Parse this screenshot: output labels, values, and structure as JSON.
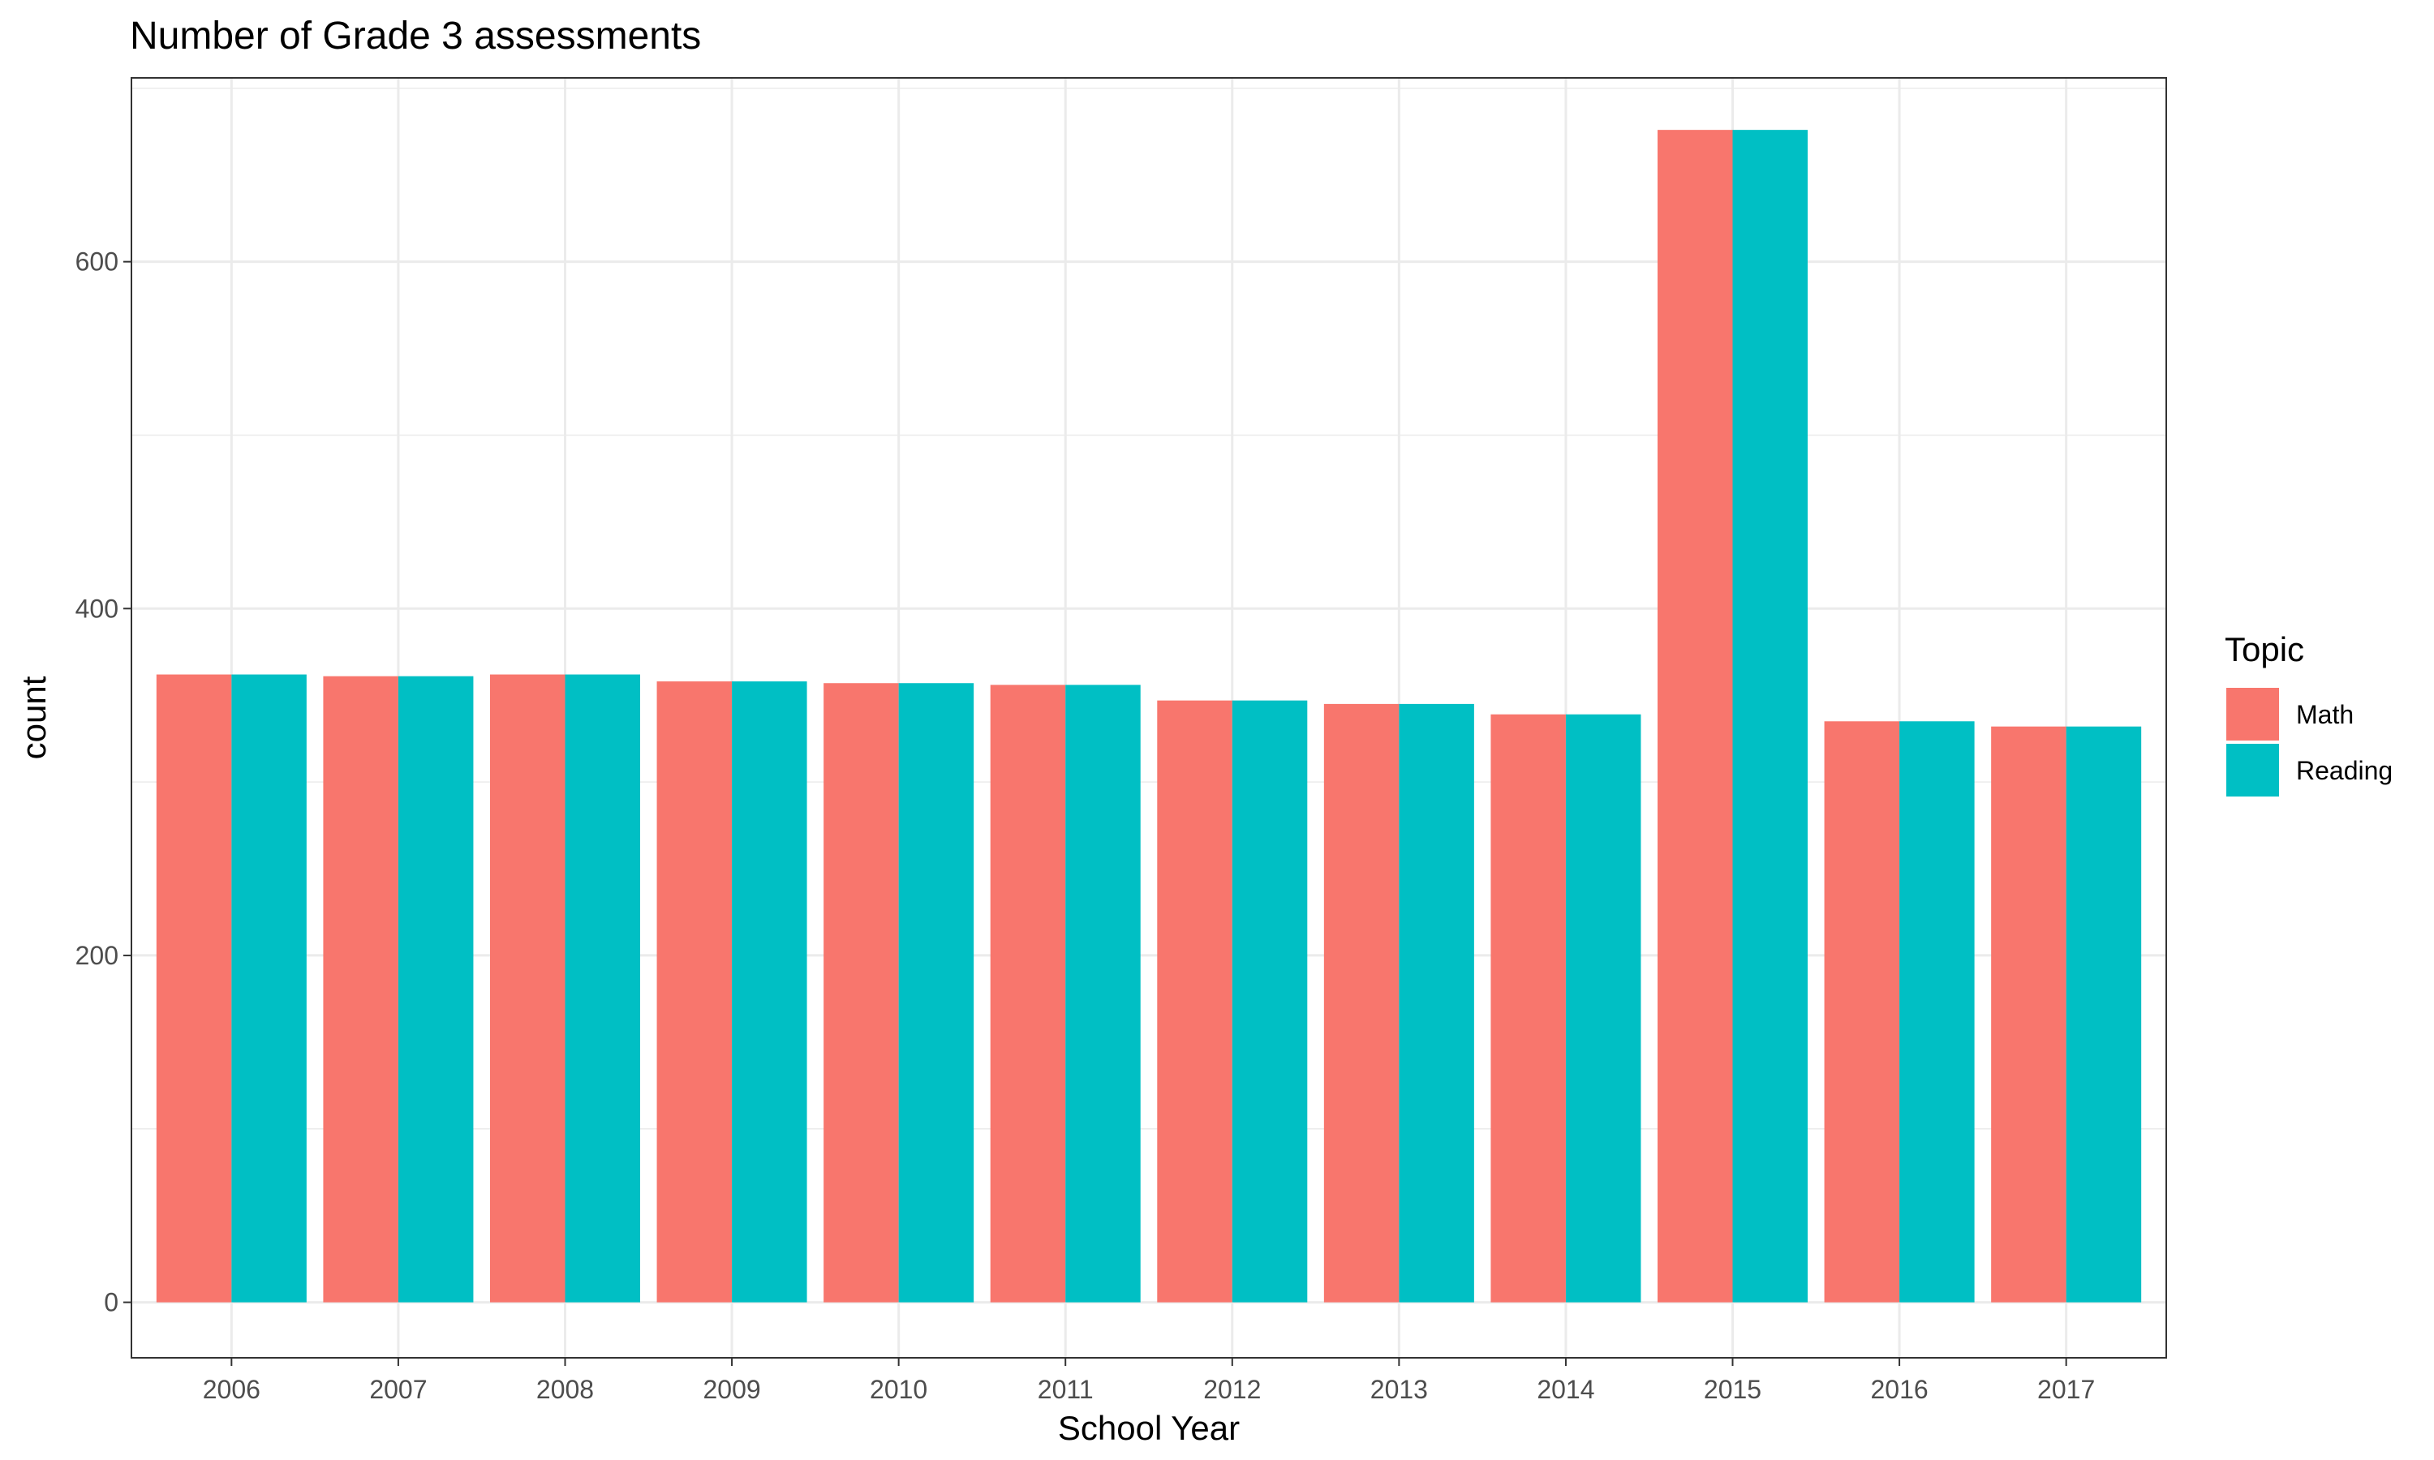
{
  "chart_data": {
    "type": "bar",
    "title": "Number of Grade 3 assessments",
    "xlabel": "School Year",
    "ylabel": "count",
    "categories": [
      "2006",
      "2007",
      "2008",
      "2009",
      "2010",
      "2011",
      "2012",
      "2013",
      "2014",
      "2015",
      "2016",
      "2017"
    ],
    "series": [
      {
        "name": "Math",
        "color": "#F8766D",
        "values": [
          362,
          361,
          362,
          358,
          357,
          356,
          347,
          345,
          339,
          676,
          335,
          332
        ]
      },
      {
        "name": "Reading",
        "color": "#00BFC4",
        "values": [
          362,
          361,
          362,
          358,
          357,
          356,
          347,
          345,
          339,
          676,
          335,
          332
        ]
      }
    ],
    "ylim": [
      -32,
      706
    ],
    "yticks": [
      "0",
      "200",
      "400",
      "600"
    ],
    "grid": true,
    "legend": {
      "title": "Topic",
      "placement": "right"
    }
  }
}
